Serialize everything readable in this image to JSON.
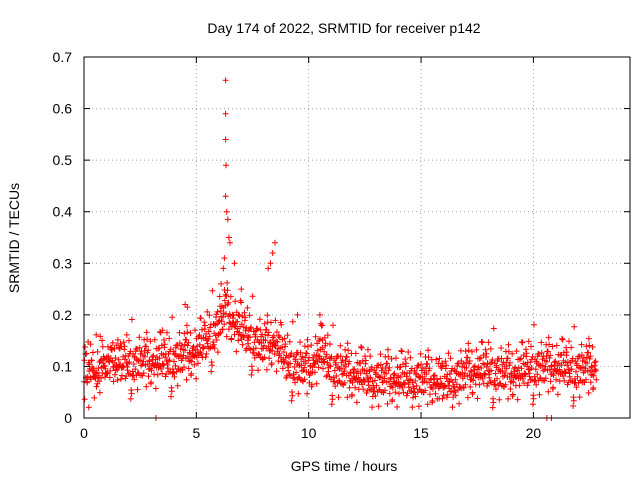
{
  "chart_data": {
    "type": "scatter",
    "title": "Day 174 of 2022, SRMTID for receiver p142",
    "xlabel": "GPS time / hours",
    "ylabel": "SRMTID / TECUs",
    "xlim": [
      0,
      24.3
    ],
    "ylim": [
      0,
      0.7
    ],
    "x_ticks": [
      0,
      5,
      10,
      15,
      20
    ],
    "x_tick_labels": [
      "0",
      "5",
      "10",
      "15",
      "20"
    ],
    "y_ticks": [
      0,
      0.1,
      0.2,
      0.3,
      0.4,
      0.5,
      0.6,
      0.7
    ],
    "y_tick_labels": [
      "0",
      "0.1",
      "0.2",
      "0.3",
      "0.4",
      "0.5",
      "0.6",
      "0.7"
    ],
    "grid": true,
    "marker": "plus",
    "series": [
      {
        "name": "SRMTID",
        "color": "#ff0000",
        "approx_points": 1390,
        "sampling": "every 1 minute, 00:00 to about 22:45 GPS time",
        "baseline_trend": {
          "x": [
            0,
            1,
            2,
            3,
            4,
            5,
            5.8,
            6.3,
            7,
            8,
            8.5,
            9,
            10,
            10.5,
            11,
            12,
            13,
            14,
            15,
            16,
            17,
            18,
            19,
            20,
            21,
            22,
            22.8
          ],
          "y": [
            0.09,
            0.095,
            0.1,
            0.1,
            0.105,
            0.12,
            0.16,
            0.2,
            0.16,
            0.13,
            0.14,
            0.1,
            0.085,
            0.12,
            0.09,
            0.075,
            0.068,
            0.065,
            0.068,
            0.06,
            0.078,
            0.085,
            0.075,
            0.09,
            0.09,
            0.085,
            0.09
          ]
        },
        "spread": 0.028,
        "peaks": [
          {
            "x": 6.1,
            "y": 0.26
          },
          {
            "x": 6.2,
            "y": 0.29
          },
          {
            "x": 6.25,
            "y": 0.31
          },
          {
            "x": 6.3,
            "y": 0.43
          },
          {
            "x": 6.3,
            "y": 0.54
          },
          {
            "x": 6.3,
            "y": 0.59
          },
          {
            "x": 6.3,
            "y": 0.655
          },
          {
            "x": 6.32,
            "y": 0.49
          },
          {
            "x": 6.35,
            "y": 0.4
          },
          {
            "x": 6.4,
            "y": 0.385
          },
          {
            "x": 6.45,
            "y": 0.35
          },
          {
            "x": 6.5,
            "y": 0.34
          },
          {
            "x": 6.7,
            "y": 0.3
          },
          {
            "x": 7.0,
            "y": 0.25
          },
          {
            "x": 4.5,
            "y": 0.22
          },
          {
            "x": 4.6,
            "y": 0.215
          },
          {
            "x": 8.2,
            "y": 0.29
          },
          {
            "x": 8.3,
            "y": 0.3
          },
          {
            "x": 8.4,
            "y": 0.32
          },
          {
            "x": 8.5,
            "y": 0.34
          },
          {
            "x": 10.5,
            "y": 0.2
          },
          {
            "x": 10.6,
            "y": 0.18
          },
          {
            "x": 9.5,
            "y": 0.2
          },
          {
            "x": 3.5,
            "y": 0.17
          }
        ],
        "zero_gaps": [
          3.2,
          20.6,
          20.8
        ]
      }
    ]
  }
}
